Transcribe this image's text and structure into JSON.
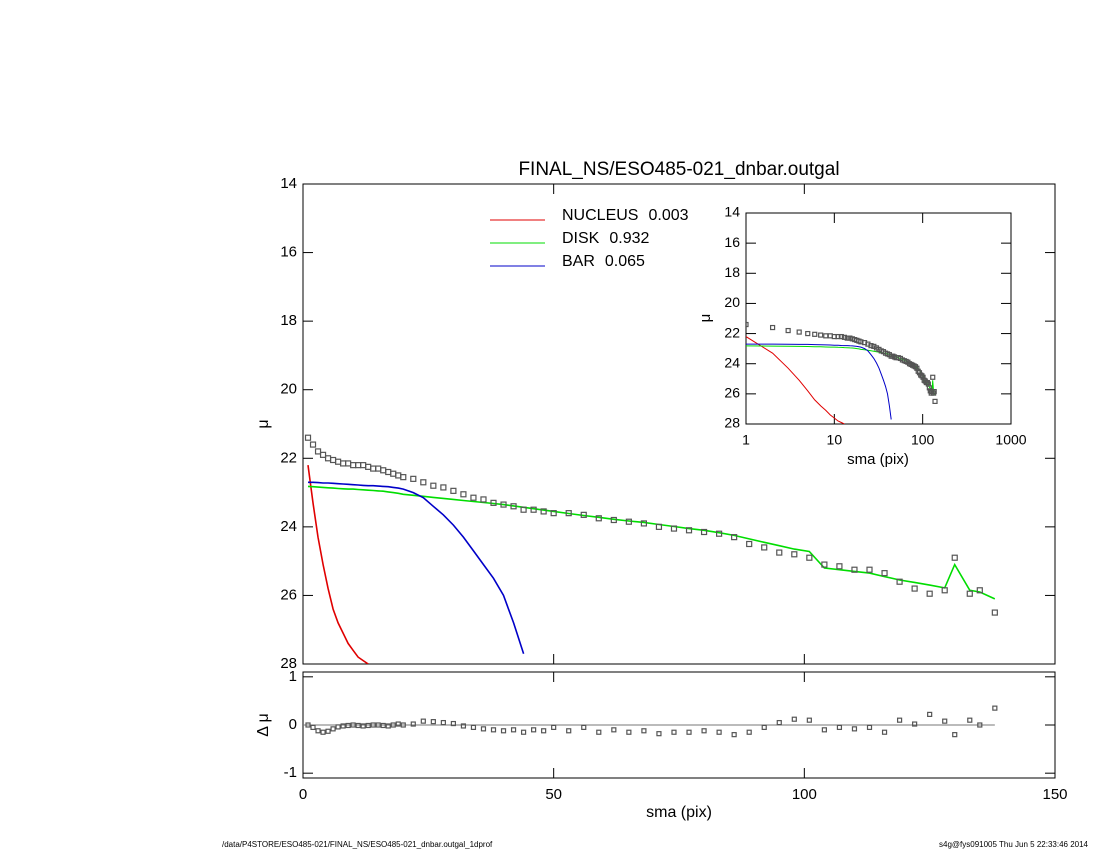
{
  "chart_data": [
    {
      "type": "line",
      "title": "FINAL_NS/ESO485-021_dnbar.outgal",
      "ylabel": "μ",
      "footer_left": "/data/P4STORE/ESO485-021/FINAL_NS/ESO485-021_dnbar.outgal_1dprof",
      "footer_right": "s4g@fys091005  Thu Jun  5 22:33:46 2014",
      "xlim": [
        0,
        150
      ],
      "xticks": [
        0,
        50,
        100,
        150
      ],
      "ylim": [
        14,
        28
      ],
      "yticks": [
        14,
        16,
        18,
        20,
        22,
        24,
        26,
        28
      ],
      "y_inverted": true,
      "x": [
        1,
        2,
        3,
        4,
        5,
        6,
        7,
        8,
        9,
        10,
        11,
        12,
        13,
        14,
        15,
        16,
        17,
        18,
        19,
        20,
        22,
        24,
        26,
        28,
        30,
        32,
        34,
        36,
        38,
        40,
        42,
        44,
        46,
        48,
        50,
        53,
        56,
        59,
        62,
        65,
        68,
        71,
        74,
        77,
        80,
        83,
        86,
        89,
        92,
        95,
        98,
        101,
        104,
        107,
        110,
        113,
        116,
        119,
        122,
        125,
        128,
        130,
        133,
        135,
        138
      ],
      "values": [
        21.4,
        21.6,
        21.8,
        21.9,
        22.0,
        22.05,
        22.1,
        22.15,
        22.15,
        22.2,
        22.2,
        22.2,
        22.25,
        22.3,
        22.3,
        22.35,
        22.4,
        22.45,
        22.5,
        22.55,
        22.6,
        22.7,
        22.8,
        22.85,
        22.95,
        23.05,
        23.15,
        23.2,
        23.3,
        23.35,
        23.4,
        23.5,
        23.5,
        23.55,
        23.6,
        23.6,
        23.65,
        23.75,
        23.8,
        23.85,
        23.9,
        24.0,
        24.05,
        24.1,
        24.15,
        24.2,
        24.3,
        24.5,
        24.6,
        24.75,
        24.8,
        24.9,
        25.1,
        25.15,
        25.25,
        25.25,
        25.35,
        25.6,
        25.8,
        25.95,
        25.85,
        24.9,
        25.95,
        25.85,
        26.5
      ],
      "point_color": "#555555",
      "series": [
        {
          "name": "NUCLEUS",
          "fraction": 0.003,
          "color": "#e00000",
          "values": [
            22.2,
            23.3,
            24.3,
            25.1,
            25.8,
            26.4,
            26.8,
            27.1,
            27.4,
            27.6,
            27.8,
            27.9,
            28.0,
            null,
            null,
            null,
            null,
            null,
            null,
            null,
            null,
            null,
            null,
            null,
            null,
            null,
            null,
            null,
            null,
            null,
            null,
            null,
            null,
            null,
            null,
            null,
            null,
            null,
            null,
            null,
            null,
            null,
            null,
            null,
            null,
            null,
            null,
            null,
            null,
            null,
            null,
            null,
            null,
            null,
            null,
            null,
            null,
            null,
            null,
            null,
            null,
            null,
            null,
            null,
            null
          ]
        },
        {
          "name": "DISK",
          "fraction": 0.932,
          "color": "#00dd00",
          "values": [
            22.82,
            22.83,
            22.84,
            22.85,
            22.86,
            22.87,
            22.88,
            22.89,
            22.9,
            22.9,
            22.91,
            22.92,
            22.93,
            22.94,
            22.95,
            22.96,
            22.98,
            23.0,
            23.02,
            23.05,
            23.08,
            23.11,
            23.14,
            23.17,
            23.2,
            23.23,
            23.26,
            23.29,
            23.32,
            23.35,
            23.39,
            23.43,
            23.47,
            23.51,
            23.55,
            23.61,
            23.67,
            23.72,
            23.78,
            23.83,
            23.87,
            23.93,
            23.99,
            24.05,
            24.1,
            24.17,
            24.25,
            24.35,
            24.45,
            24.55,
            24.65,
            24.72,
            25.2,
            25.25,
            25.3,
            25.35,
            25.45,
            25.55,
            25.62,
            25.7,
            25.78,
            25.1,
            25.85,
            25.9,
            26.1
          ]
        },
        {
          "name": "BAR",
          "fraction": 0.065,
          "color": "#0000c8",
          "values": [
            22.7,
            22.7,
            22.71,
            22.72,
            22.72,
            22.73,
            22.74,
            22.75,
            22.76,
            22.77,
            22.78,
            22.79,
            22.8,
            22.8,
            22.81,
            22.82,
            22.83,
            22.85,
            22.87,
            22.9,
            23.0,
            23.15,
            23.4,
            23.65,
            23.95,
            24.3,
            24.7,
            25.1,
            25.5,
            26.0,
            26.8,
            27.7,
            null,
            null,
            null,
            null,
            null,
            null,
            null,
            null,
            null,
            null,
            null,
            null,
            null,
            null,
            null,
            null,
            null,
            null,
            null,
            null,
            null,
            null,
            null,
            null,
            null,
            null,
            null,
            null,
            null,
            null,
            null,
            null,
            null
          ]
        }
      ]
    },
    {
      "type": "scatter",
      "ylabel": "Δ μ",
      "xlabel": "sma (pix)",
      "xlim": [
        0,
        150
      ],
      "xticks": [
        0,
        50,
        100,
        150
      ],
      "ylim": [
        -1.1,
        1.1
      ],
      "yticks": [
        -1,
        0,
        1
      ],
      "values": [
        0.0,
        -0.05,
        -0.12,
        -0.15,
        -0.13,
        -0.08,
        -0.04,
        -0.02,
        -0.01,
        0.0,
        -0.01,
        -0.02,
        -0.01,
        0.0,
        0.0,
        -0.01,
        -0.02,
        0.0,
        0.02,
        0.0,
        0.02,
        0.08,
        0.07,
        0.05,
        0.03,
        -0.02,
        -0.05,
        -0.08,
        -0.1,
        -0.12,
        -0.1,
        -0.15,
        -0.1,
        -0.12,
        -0.05,
        -0.12,
        -0.05,
        -0.15,
        -0.1,
        -0.15,
        -0.12,
        -0.18,
        -0.15,
        -0.15,
        -0.12,
        -0.15,
        -0.2,
        -0.15,
        -0.05,
        0.05,
        0.12,
        0.1,
        -0.1,
        -0.05,
        -0.08,
        -0.05,
        -0.15,
        0.1,
        0.02,
        0.22,
        0.08,
        -0.2,
        0.1,
        0.0,
        0.35
      ]
    },
    {
      "type": "line",
      "log_x": true,
      "ylabel": "μ",
      "xlabel": "sma (pix)",
      "xlim": [
        1,
        1000
      ],
      "xticks": [
        1,
        10,
        100,
        1000
      ],
      "ylim": [
        14,
        28
      ],
      "yticks": [
        14,
        16,
        18,
        20,
        22,
        24,
        26,
        28
      ]
    }
  ]
}
